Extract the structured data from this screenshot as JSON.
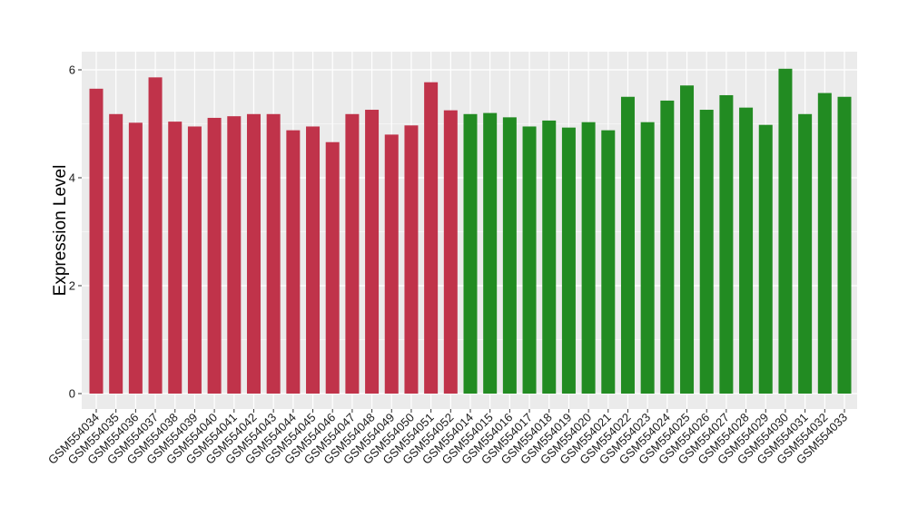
{
  "chart_data": {
    "type": "bar",
    "title": "",
    "xlabel": "",
    "ylabel": "Expression Level",
    "ylim": [
      0,
      6.3
    ],
    "y_ticks": [
      0,
      2,
      4,
      6
    ],
    "grid": true,
    "legend": "none",
    "categories": [
      "GSM554034",
      "GSM554035",
      "GSM554036",
      "GSM554037",
      "GSM554038",
      "GSM554039",
      "GSM554040",
      "GSM554041",
      "GSM554042",
      "GSM554043",
      "GSM554044",
      "GSM554045",
      "GSM554046",
      "GSM554047",
      "GSM554048",
      "GSM554049",
      "GSM554050",
      "GSM554051",
      "GSM554052",
      "GSM554014",
      "GSM554015",
      "GSM554016",
      "GSM554017",
      "GSM554018",
      "GSM554019",
      "GSM554020",
      "GSM554021",
      "GSM554022",
      "GSM554023",
      "GSM554024",
      "GSM554025",
      "GSM554026",
      "GSM554027",
      "GSM554028",
      "GSM554029",
      "GSM554030",
      "GSM554031",
      "GSM554032",
      "GSM554033"
    ],
    "values": [
      5.65,
      5.18,
      5.02,
      5.86,
      5.04,
      4.95,
      5.11,
      5.14,
      5.18,
      5.18,
      4.88,
      4.95,
      4.66,
      5.18,
      5.26,
      4.8,
      4.97,
      5.77,
      5.25,
      5.18,
      5.2,
      5.12,
      4.95,
      5.06,
      4.93,
      5.03,
      4.88,
      5.5,
      5.03,
      5.43,
      5.71,
      5.26,
      5.53,
      5.3,
      4.98,
      6.02,
      5.18,
      5.57,
      5.5
    ],
    "groups": [
      0,
      0,
      0,
      0,
      0,
      0,
      0,
      0,
      0,
      0,
      0,
      0,
      0,
      0,
      0,
      0,
      0,
      0,
      0,
      1,
      1,
      1,
      1,
      1,
      1,
      1,
      1,
      1,
      1,
      1,
      1,
      1,
      1,
      1,
      1,
      1,
      1,
      1,
      1
    ],
    "colors": {
      "group_0": "#c0334a",
      "group_1": "#228b22",
      "panel_bg": "#ebebeb",
      "grid": "#ffffff"
    }
  }
}
